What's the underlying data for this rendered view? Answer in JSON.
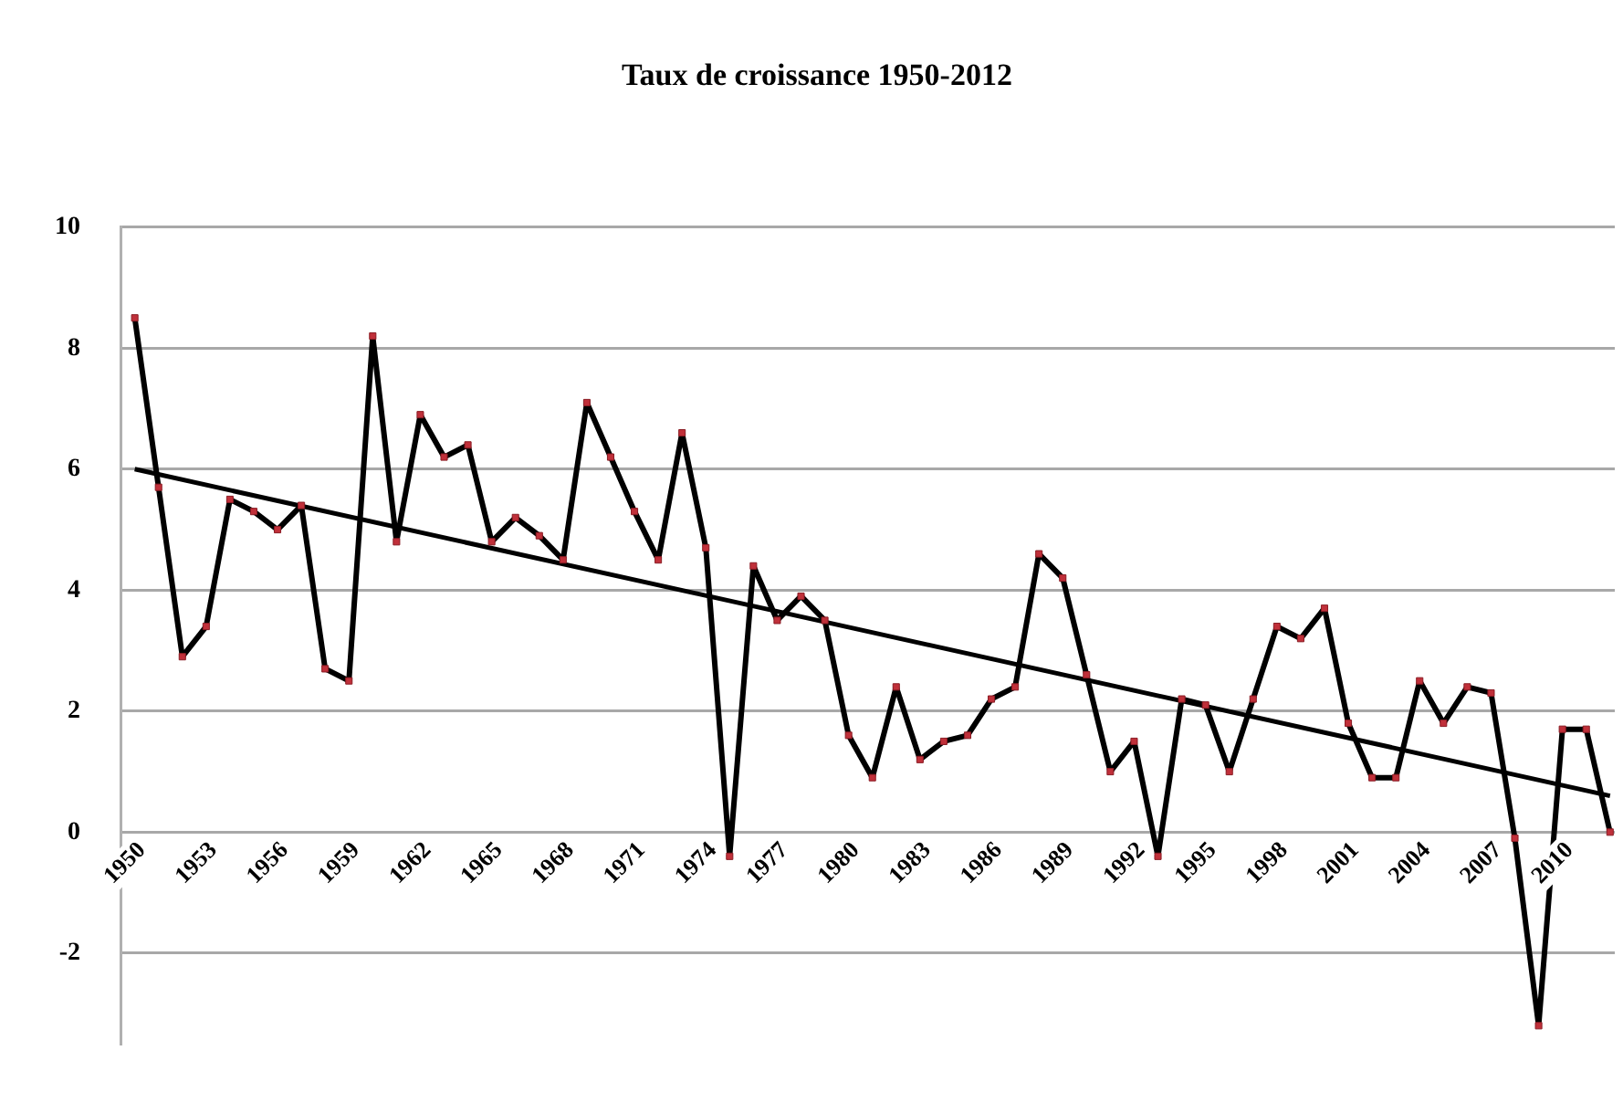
{
  "chart_data": {
    "type": "line",
    "title": "Taux de croissance 1950-2012",
    "x": [
      1950,
      1951,
      1952,
      1953,
      1954,
      1955,
      1956,
      1957,
      1958,
      1959,
      1960,
      1961,
      1962,
      1963,
      1964,
      1965,
      1966,
      1967,
      1968,
      1969,
      1970,
      1971,
      1972,
      1973,
      1974,
      1975,
      1976,
      1977,
      1978,
      1979,
      1980,
      1981,
      1982,
      1983,
      1984,
      1985,
      1986,
      1987,
      1988,
      1989,
      1990,
      1991,
      1992,
      1993,
      1994,
      1995,
      1996,
      1997,
      1998,
      1999,
      2000,
      2001,
      2002,
      2003,
      2004,
      2005,
      2006,
      2007,
      2008,
      2009,
      2010,
      2011,
      2012
    ],
    "series": [
      {
        "color": "#000000",
        "marker": "square",
        "values": [
          8.5,
          5.7,
          2.9,
          3.4,
          5.5,
          5.3,
          5.0,
          5.4,
          2.7,
          2.5,
          8.2,
          4.8,
          6.9,
          6.2,
          6.4,
          4.8,
          5.2,
          4.9,
          4.5,
          7.1,
          6.2,
          5.3,
          4.5,
          6.6,
          4.7,
          -0.4,
          4.4,
          3.5,
          3.9,
          3.5,
          1.6,
          0.9,
          2.4,
          1.2,
          1.5,
          1.6,
          2.2,
          2.4,
          4.6,
          4.2,
          2.6,
          1.0,
          1.5,
          -0.4,
          2.2,
          2.1,
          1.0,
          2.2,
          3.4,
          3.2,
          3.7,
          1.8,
          0.9,
          0.9,
          2.5,
          1.8,
          2.4,
          2.3,
          -0.1,
          -3.2,
          1.7,
          1.7,
          0.0
        ]
      },
      {
        "type": "line",
        "color": "#000000",
        "marker": "none",
        "x": [
          1950,
          2012
        ],
        "values": [
          6.0,
          0.6
        ]
      }
    ],
    "xlim": [
      1949.4,
      2012.2
    ],
    "xticks": [
      1950,
      1953,
      1956,
      1959,
      1962,
      1965,
      1968,
      1971,
      1974,
      1977,
      1980,
      1983,
      1986,
      1989,
      1992,
      1995,
      1998,
      2001,
      2004,
      2007,
      2010
    ],
    "ylim": [
      -3.5,
      10
    ],
    "yticks": [
      -2,
      0,
      2,
      4,
      6,
      8,
      10
    ],
    "grid": "y",
    "legend": false
  }
}
